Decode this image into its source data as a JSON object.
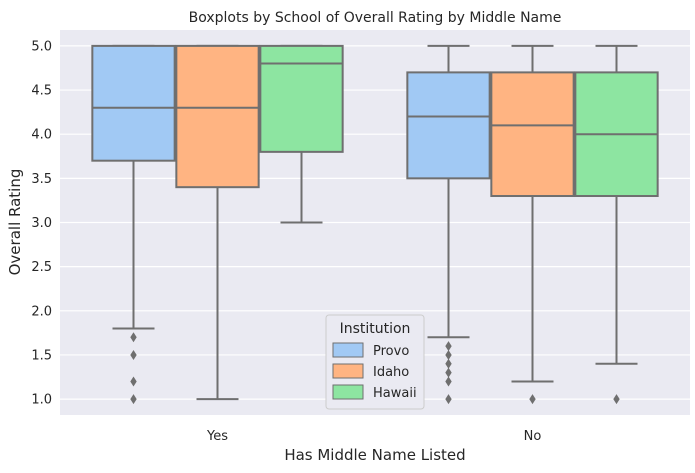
{
  "chart_data": {
    "type": "boxplot",
    "title": "Boxplots by School of Overall Rating by Middle Name",
    "xlabel": "Has Middle Name Listed",
    "ylabel": "Overall Rating",
    "ylim": [
      0.82,
      5.18
    ],
    "yticks": [
      "1.0",
      "1.5",
      "2.0",
      "2.5",
      "3.0",
      "3.5",
      "4.0",
      "4.5",
      "5.0"
    ],
    "ytick_values": [
      1.0,
      1.5,
      2.0,
      2.5,
      3.0,
      3.5,
      4.0,
      4.5,
      5.0
    ],
    "categories": [
      "Yes",
      "No"
    ],
    "grid": true,
    "legend": {
      "title": "Institution",
      "placement": "lower-center"
    },
    "series": [
      {
        "name": "Provo",
        "color": "#a1c9f4",
        "boxes": [
          {
            "category": "Yes",
            "whisker_low": 1.8,
            "q1": 3.7,
            "median": 4.3,
            "q3": 5.0,
            "whisker_high": 5.0,
            "outliers": [
              1.7,
              1.5,
              1.2,
              1.0
            ]
          },
          {
            "category": "No",
            "whisker_low": 1.7,
            "q1": 3.5,
            "median": 4.2,
            "q3": 4.7,
            "whisker_high": 5.0,
            "outliers": [
              1.6,
              1.5,
              1.4,
              1.3,
              1.2,
              1.0
            ]
          }
        ]
      },
      {
        "name": "Idaho",
        "color": "#ffb482",
        "boxes": [
          {
            "category": "Yes",
            "whisker_low": 1.0,
            "q1": 3.4,
            "median": 4.3,
            "q3": 5.0,
            "whisker_high": 5.0,
            "outliers": []
          },
          {
            "category": "No",
            "whisker_low": 1.2,
            "q1": 3.3,
            "median": 4.1,
            "q3": 4.7,
            "whisker_high": 5.0,
            "outliers": [
              1.0
            ]
          }
        ]
      },
      {
        "name": "Hawaii",
        "color": "#8de5a1",
        "boxes": [
          {
            "category": "Yes",
            "whisker_low": 3.0,
            "q1": 3.8,
            "median": 4.8,
            "q3": 5.0,
            "whisker_high": 5.0,
            "outliers": []
          },
          {
            "category": "No",
            "whisker_low": 1.4,
            "q1": 3.3,
            "median": 4.0,
            "q3": 4.7,
            "whisker_high": 5.0,
            "outliers": [
              1.0
            ]
          }
        ]
      }
    ]
  }
}
